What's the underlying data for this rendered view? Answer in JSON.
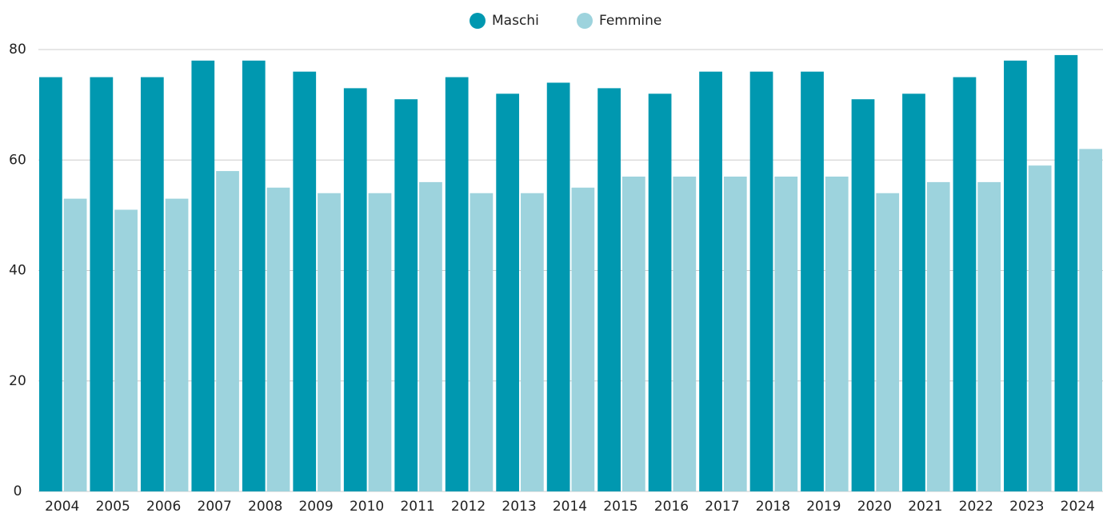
{
  "chart_data": {
    "type": "bar",
    "categories": [
      "2004",
      "2005",
      "2006",
      "2007",
      "2008",
      "2009",
      "2010",
      "2011",
      "2012",
      "2013",
      "2014",
      "2015",
      "2016",
      "2017",
      "2018",
      "2019",
      "2020",
      "2021",
      "2022",
      "2023",
      "2024"
    ],
    "series": [
      {
        "name": "Maschi",
        "color": "#0098b0",
        "values": [
          75,
          75,
          75,
          78,
          78,
          76,
          73,
          71,
          75,
          72,
          74,
          73,
          72,
          76,
          76,
          76,
          71,
          72,
          75,
          78,
          79
        ]
      },
      {
        "name": "Femmine",
        "color": "#9dd3dd",
        "values": [
          53,
          51,
          53,
          58,
          55,
          54,
          54,
          56,
          54,
          54,
          55,
          57,
          57,
          57,
          57,
          57,
          54,
          56,
          56,
          59,
          62
        ]
      }
    ],
    "ylim": [
      0,
      80
    ],
    "yticks": [
      0,
      20,
      40,
      60,
      80
    ],
    "grid": true,
    "legend": "top"
  }
}
